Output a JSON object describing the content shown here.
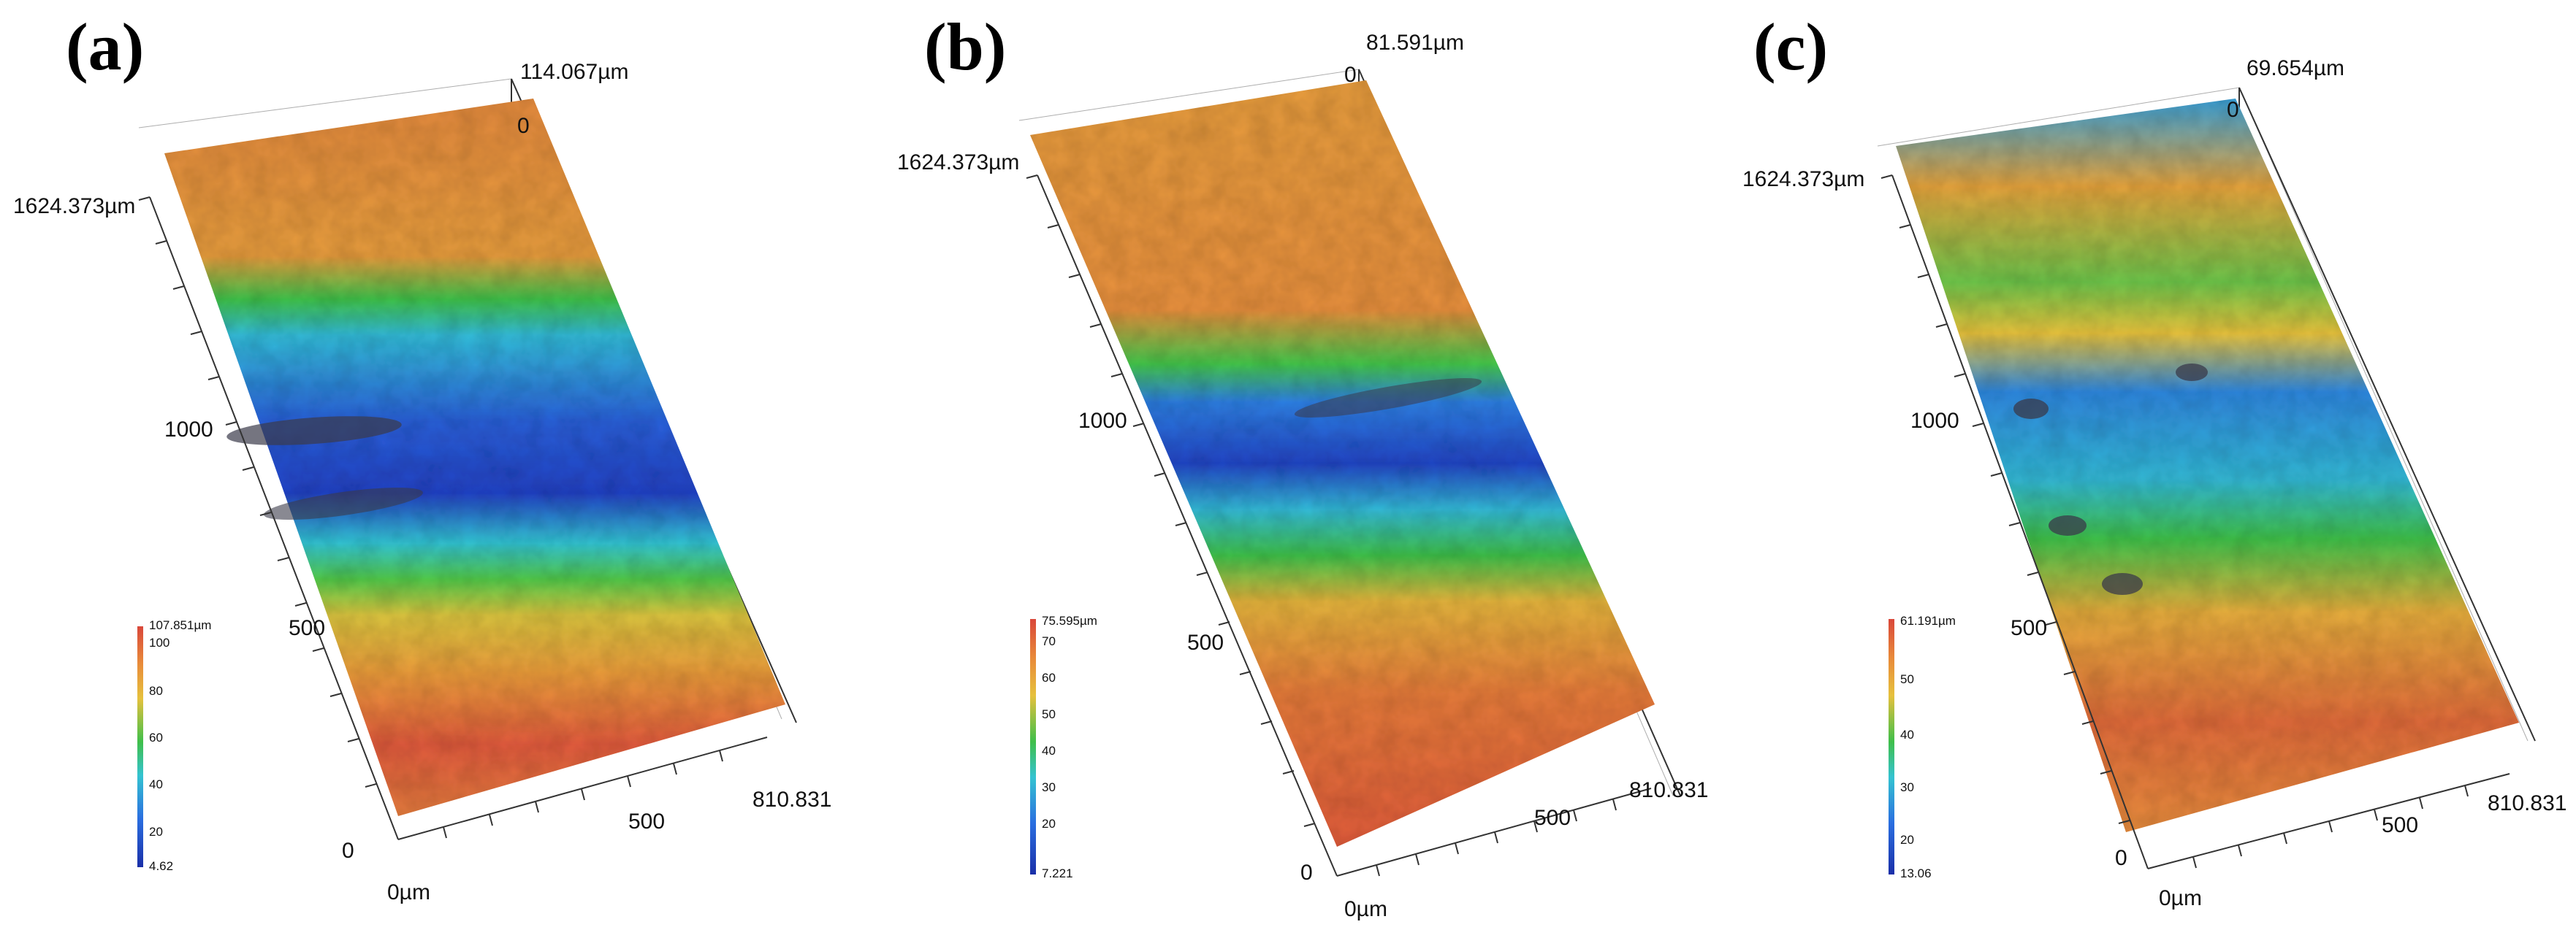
{
  "panels": [
    {
      "label": "(a)",
      "z_max": "114.067µm",
      "z_zero": "0",
      "y_max": "1624.373µm",
      "y_mid": "1000",
      "y_low": "500",
      "y_zero": "0",
      "x_zero": "0µm",
      "x_mid": "500",
      "x_max": "810.831",
      "colorbar": {
        "max_label": "107.851µm",
        "ticks": [
          "100",
          "80",
          "60",
          "40",
          "20"
        ],
        "min_label": "4.62"
      }
    },
    {
      "label": "(b)",
      "z_max": "81.591µm",
      "z_zero": "0",
      "y_max": "1624.373µm",
      "y_mid": "1000",
      "y_low": "500",
      "y_zero": "0",
      "x_zero": "0µm",
      "x_mid": "500",
      "x_max": "810.831",
      "colorbar": {
        "max_label": "75.595µm",
        "ticks": [
          "70",
          "60",
          "50",
          "40",
          "30",
          "20"
        ],
        "min_label": "7.221"
      }
    },
    {
      "label": "(c)",
      "z_max": "69.654µm",
      "z_zero": "0",
      "y_max": "1624.373µm",
      "y_mid": "1000",
      "y_low": "500",
      "y_zero": "0",
      "x_zero": "0µm",
      "x_mid": "500",
      "x_max": "810.831",
      "colorbar": {
        "max_label": "61.191µm",
        "ticks": [
          "50",
          "40",
          "30",
          "20"
        ],
        "min_label": "13.06"
      }
    }
  ],
  "colors": {
    "high": "#d9473a",
    "upper": "#e8893a",
    "mid_high": "#e6c13d",
    "mid": "#3fbf4a",
    "mid_low": "#34c3d1",
    "low": "#2a6ee0",
    "deep": "#1a2fa8",
    "pit": "#3a3a4a"
  }
}
